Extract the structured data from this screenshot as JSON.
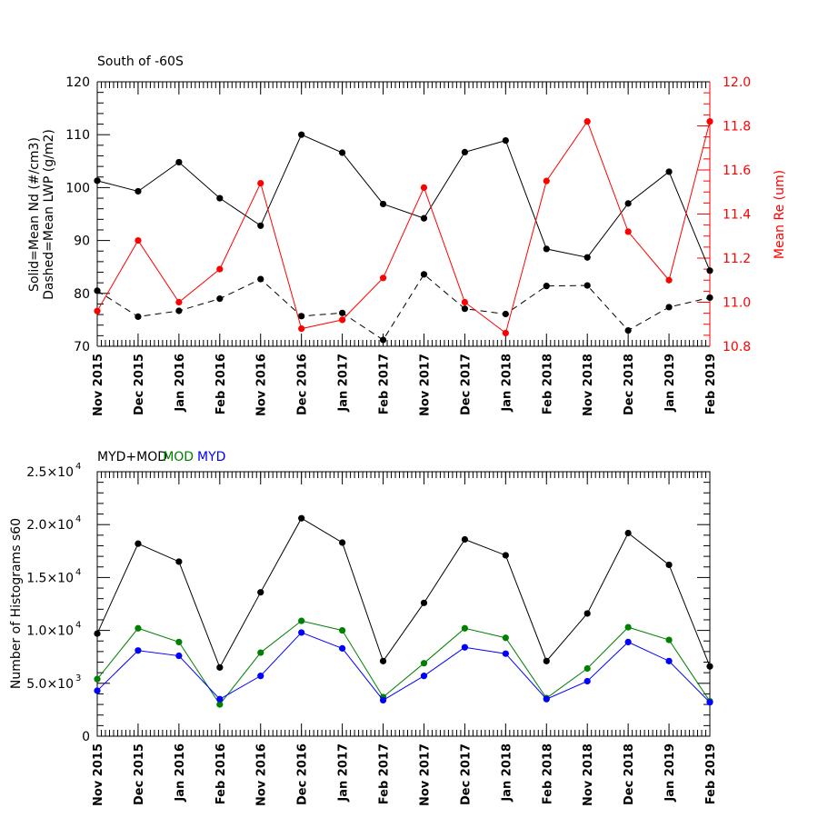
{
  "chart_data": [
    {
      "type": "line",
      "title": "South of -60S",
      "categories": [
        "Nov 2015",
        "Dec 2015",
        "Jan 2016",
        "Feb 2016",
        "Nov 2016",
        "Dec 2016",
        "Jan 2017",
        "Feb 2017",
        "Nov 2017",
        "Dec 2017",
        "Jan 2018",
        "Feb 2018",
        "Nov 2018",
        "Dec 2018",
        "Jan 2019",
        "Feb 2019"
      ],
      "ylabel_left_line1": "Solid=Mean Nd (#/cm3)",
      "ylabel_left_line2": "Dashed=Mean LWP (g/m2)",
      "ylabel_right": "Mean Re (um)",
      "ylim": [
        70,
        120
      ],
      "yticks": [
        "70",
        "80",
        "90",
        "100",
        "110",
        "120"
      ],
      "ylim_right": [
        10.8,
        12.0
      ],
      "yticks_right": [
        "10.8",
        "11.0",
        "11.2",
        "11.4",
        "11.6",
        "11.8",
        "12.0"
      ],
      "series": [
        {
          "name": "Mean Nd",
          "axis": "left",
          "style": "solid",
          "color": "#000000",
          "values": [
            101.3,
            99.3,
            104.8,
            98.0,
            92.8,
            110.0,
            106.6,
            96.9,
            94.2,
            106.7,
            108.9,
            88.4,
            86.8,
            97.0,
            103.0,
            84.3
          ]
        },
        {
          "name": "Mean LWP",
          "axis": "left",
          "style": "dashed",
          "color": "#000000",
          "values": [
            80.5,
            75.6,
            76.7,
            79.0,
            82.7,
            75.7,
            76.3,
            71.2,
            83.6,
            77.1,
            76.1,
            81.4,
            81.5,
            73.0,
            77.4,
            79.2
          ]
        },
        {
          "name": "Mean Re",
          "axis": "right",
          "style": "solid",
          "color": "#ff0000",
          "values": [
            10.96,
            11.28,
            11.0,
            11.15,
            11.54,
            10.88,
            10.92,
            11.11,
            11.52,
            11.0,
            10.86,
            11.55,
            11.82,
            11.32,
            11.1,
            11.82
          ]
        }
      ]
    },
    {
      "type": "line",
      "categories": [
        "Nov 2015",
        "Dec 2015",
        "Jan 2016",
        "Feb 2016",
        "Nov 2016",
        "Dec 2016",
        "Jan 2017",
        "Feb 2017",
        "Nov 2017",
        "Dec 2017",
        "Jan 2018",
        "Feb 2018",
        "Nov 2018",
        "Dec 2018",
        "Jan 2019",
        "Feb 2019"
      ],
      "ylabel": "Number of Histograms s60",
      "ylim": [
        0,
        25000
      ],
      "ytick_values": [
        0,
        5000,
        10000,
        15000,
        20000,
        25000
      ],
      "ytick_labels": [
        {
          "mantissa": "0",
          "exponent": ""
        },
        {
          "mantissa": "5.0×10",
          "exponent": "3"
        },
        {
          "mantissa": "1.0×10",
          "exponent": "4"
        },
        {
          "mantissa": "1.5×10",
          "exponent": "4"
        },
        {
          "mantissa": "2.0×10",
          "exponent": "4"
        },
        {
          "mantissa": "2.5×10",
          "exponent": "4"
        }
      ],
      "legend": [
        {
          "label": "MYD+MOD",
          "color": "#000000"
        },
        {
          "label": "MOD",
          "color": "#008000"
        },
        {
          "label": "MYD",
          "color": "#0000ff"
        }
      ],
      "series": [
        {
          "name": "MYD+MOD",
          "color": "#000000",
          "values": [
            9700,
            18200,
            16500,
            6500,
            13600,
            20600,
            18300,
            7100,
            12600,
            18600,
            17100,
            7100,
            11600,
            19200,
            16200,
            6600
          ]
        },
        {
          "name": "MOD",
          "color": "#008000",
          "values": [
            5400,
            10200,
            8900,
            3000,
            7900,
            10900,
            10000,
            3700,
            6900,
            10200,
            9300,
            3600,
            6400,
            10300,
            9100,
            3300
          ]
        },
        {
          "name": "MYD",
          "color": "#0000ff",
          "values": [
            4300,
            8100,
            7600,
            3500,
            5700,
            9800,
            8300,
            3400,
            5700,
            8400,
            7800,
            3500,
            5200,
            8900,
            7100,
            3200
          ]
        }
      ]
    }
  ]
}
